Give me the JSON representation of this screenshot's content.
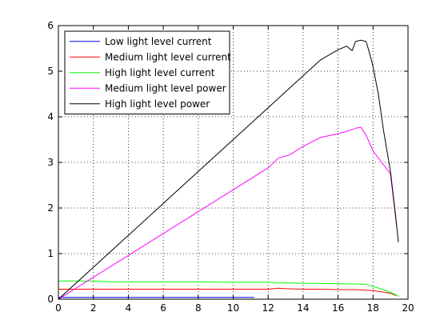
{
  "chart_data": {
    "type": "line",
    "title": "",
    "xlabel": "",
    "ylabel": "",
    "xlim": [
      0,
      20
    ],
    "ylim": [
      0,
      6
    ],
    "xticks": [
      0,
      2,
      4,
      6,
      8,
      10,
      12,
      14,
      16,
      18,
      20
    ],
    "yticks": [
      0,
      1,
      2,
      3,
      4,
      5,
      6
    ],
    "grid": true,
    "legend_position": "top-left",
    "series": [
      {
        "name": "Low light level current",
        "color": "#0000ff",
        "x": [
          0,
          2,
          4,
          6,
          8,
          10,
          11.2
        ],
        "y": [
          0.04,
          0.04,
          0.04,
          0.04,
          0.04,
          0.04,
          0.04
        ]
      },
      {
        "name": "Medium light level current",
        "color": "#ff0000",
        "x": [
          0,
          2,
          4,
          6,
          8,
          10,
          12,
          12.6,
          13,
          14,
          15,
          16,
          17,
          17.5,
          18,
          18.5,
          19,
          19.3
        ],
        "y": [
          0.22,
          0.22,
          0.22,
          0.22,
          0.22,
          0.22,
          0.22,
          0.24,
          0.23,
          0.22,
          0.22,
          0.21,
          0.21,
          0.2,
          0.19,
          0.16,
          0.13,
          0.08
        ]
      },
      {
        "name": "High light level current",
        "color": "#00ff00",
        "x": [
          0,
          2,
          3,
          4,
          6,
          8,
          10,
          12,
          12.5,
          14,
          16,
          17.5,
          18,
          18.5,
          19,
          19.5
        ],
        "y": [
          0.4,
          0.4,
          0.38,
          0.38,
          0.38,
          0.38,
          0.37,
          0.37,
          0.36,
          0.35,
          0.34,
          0.33,
          0.28,
          0.22,
          0.15,
          0.06
        ]
      },
      {
        "name": "Medium light level power",
        "color": "#ff00ff",
        "x": [
          0,
          2,
          4,
          6,
          8,
          10,
          12,
          12.6,
          13.2,
          14,
          15,
          16,
          16.5,
          17,
          17.3,
          17.6,
          18,
          18.5,
          19,
          19.35
        ],
        "y": [
          0,
          0.48,
          0.96,
          1.44,
          1.92,
          2.4,
          2.88,
          3.1,
          3.16,
          3.35,
          3.55,
          3.63,
          3.68,
          3.75,
          3.77,
          3.6,
          3.25,
          3.0,
          2.75,
          1.6
        ]
      },
      {
        "name": "High light level power",
        "color": "#000000",
        "x": [
          0,
          2,
          4,
          6,
          8,
          10,
          12,
          14,
          15,
          16,
          16.5,
          16.8,
          17,
          17.3,
          17.6,
          17.8,
          18,
          18.3,
          18.6,
          19,
          19.3,
          19.45
        ],
        "y": [
          0,
          0.7,
          1.4,
          2.1,
          2.8,
          3.5,
          4.2,
          4.9,
          5.25,
          5.47,
          5.55,
          5.45,
          5.65,
          5.68,
          5.65,
          5.4,
          5.1,
          4.5,
          3.7,
          2.8,
          1.8,
          1.25
        ]
      }
    ]
  }
}
